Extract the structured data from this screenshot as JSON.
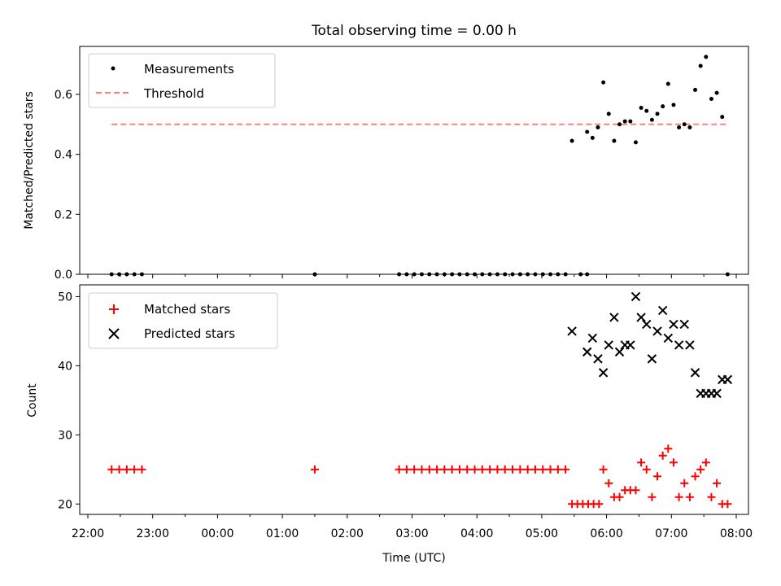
{
  "chart_data": [
    {
      "type": "scatter",
      "title": "Total observing time = 0.00 h",
      "xlabel": "",
      "ylabel": "Matched/Predicted stars",
      "ylim": [
        0,
        0.76
      ],
      "y_ticks": [
        "0.0",
        "0.2",
        "0.4",
        "0.6"
      ],
      "legend_position": "top-left",
      "series": [
        {
          "name": "Measurements",
          "color": "#000000",
          "marker": "dot",
          "points": [
            [
              "22:22",
              0
            ],
            [
              "22:29",
              0
            ],
            [
              "22:36",
              0
            ],
            [
              "22:43",
              0
            ],
            [
              "22:50",
              0
            ],
            [
              "01:30",
              0
            ],
            [
              "02:48",
              0
            ],
            [
              "02:55",
              0
            ],
            [
              "03:02",
              0
            ],
            [
              "03:09",
              0
            ],
            [
              "03:16",
              0
            ],
            [
              "03:23",
              0
            ],
            [
              "03:30",
              0
            ],
            [
              "03:37",
              0
            ],
            [
              "03:44",
              0
            ],
            [
              "03:51",
              0
            ],
            [
              "03:58",
              0
            ],
            [
              "04:05",
              0
            ],
            [
              "04:12",
              0
            ],
            [
              "04:19",
              0
            ],
            [
              "04:26",
              0
            ],
            [
              "04:33",
              0
            ],
            [
              "04:40",
              0
            ],
            [
              "04:47",
              0
            ],
            [
              "04:54",
              0
            ],
            [
              "05:01",
              0
            ],
            [
              "05:08",
              0
            ],
            [
              "05:15",
              0
            ],
            [
              "05:22",
              0
            ],
            [
              "05:28",
              0.445
            ],
            [
              "05:36",
              0
            ],
            [
              "05:42",
              0
            ],
            [
              "05:42",
              0.475
            ],
            [
              "05:47",
              0.455
            ],
            [
              "05:52",
              0.49
            ],
            [
              "05:57",
              0.64
            ],
            [
              "06:02",
              0.535
            ],
            [
              "06:07",
              0.445
            ],
            [
              "06:12",
              0.5
            ],
            [
              "06:17",
              0.51
            ],
            [
              "06:22",
              0.51
            ],
            [
              "06:27",
              0.44
            ],
            [
              "06:32",
              0.555
            ],
            [
              "06:37",
              0.545
            ],
            [
              "06:42",
              0.515
            ],
            [
              "06:47",
              0.535
            ],
            [
              "06:52",
              0.56
            ],
            [
              "06:57",
              0.635
            ],
            [
              "07:02",
              0.565
            ],
            [
              "07:07",
              0.49
            ],
            [
              "07:12",
              0.5
            ],
            [
              "07:17",
              0.49
            ],
            [
              "07:22",
              0.615
            ],
            [
              "07:27",
              0.695
            ],
            [
              "07:32",
              0.725
            ],
            [
              "07:37",
              0.585
            ],
            [
              "07:42",
              0.605
            ],
            [
              "07:47",
              0.525
            ],
            [
              "07:52",
              0
            ]
          ]
        },
        {
          "name": "Threshold",
          "color": "#ff7f7f",
          "style": "dashed",
          "points": [
            [
              "22:22",
              0.5
            ],
            [
              "07:52",
              0.5
            ]
          ]
        }
      ]
    },
    {
      "type": "scatter",
      "title": "",
      "xlabel": "Time (UTC)",
      "ylabel": "Count",
      "ylim": [
        18.5,
        51.7
      ],
      "y_ticks": [
        "20",
        "30",
        "40",
        "50"
      ],
      "x_ticks": [
        "22:00",
        "23:00",
        "00:00",
        "01:00",
        "02:00",
        "03:00",
        "04:00",
        "05:00",
        "06:00",
        "07:00",
        "08:00"
      ],
      "legend_position": "top-left",
      "series": [
        {
          "name": "Matched stars",
          "color": "#ff0000",
          "marker": "plus",
          "points": [
            [
              "22:22",
              25
            ],
            [
              "22:29",
              25
            ],
            [
              "22:36",
              25
            ],
            [
              "22:43",
              25
            ],
            [
              "22:50",
              25
            ],
            [
              "01:30",
              25
            ],
            [
              "02:48",
              25
            ],
            [
              "02:55",
              25
            ],
            [
              "03:02",
              25
            ],
            [
              "03:09",
              25
            ],
            [
              "03:16",
              25
            ],
            [
              "03:23",
              25
            ],
            [
              "03:30",
              25
            ],
            [
              "03:37",
              25
            ],
            [
              "03:44",
              25
            ],
            [
              "03:51",
              25
            ],
            [
              "03:58",
              25
            ],
            [
              "04:05",
              25
            ],
            [
              "04:12",
              25
            ],
            [
              "04:19",
              25
            ],
            [
              "04:26",
              25
            ],
            [
              "04:33",
              25
            ],
            [
              "04:40",
              25
            ],
            [
              "04:47",
              25
            ],
            [
              "04:54",
              25
            ],
            [
              "05:01",
              25
            ],
            [
              "05:08",
              25
            ],
            [
              "05:15",
              25
            ],
            [
              "05:22",
              25
            ],
            [
              "05:28",
              20
            ],
            [
              "05:33",
              20
            ],
            [
              "05:38",
              20
            ],
            [
              "05:43",
              20
            ],
            [
              "05:48",
              20
            ],
            [
              "05:53",
              20
            ],
            [
              "05:57",
              25
            ],
            [
              "06:02",
              23
            ],
            [
              "06:07",
              21
            ],
            [
              "06:12",
              21
            ],
            [
              "06:17",
              22
            ],
            [
              "06:22",
              22
            ],
            [
              "06:27",
              22
            ],
            [
              "06:32",
              26
            ],
            [
              "06:37",
              25
            ],
            [
              "06:42",
              21
            ],
            [
              "06:47",
              24
            ],
            [
              "06:52",
              27
            ],
            [
              "06:57",
              28
            ],
            [
              "07:02",
              26
            ],
            [
              "07:07",
              21
            ],
            [
              "07:12",
              23
            ],
            [
              "07:17",
              21
            ],
            [
              "07:22",
              24
            ],
            [
              "07:27",
              25
            ],
            [
              "07:32",
              26
            ],
            [
              "07:37",
              21
            ],
            [
              "07:42",
              23
            ],
            [
              "07:47",
              20
            ],
            [
              "07:52",
              20
            ]
          ]
        },
        {
          "name": "Predicted stars",
          "color": "#000000",
          "marker": "x",
          "points": [
            [
              "05:28",
              45
            ],
            [
              "05:42",
              42
            ],
            [
              "05:47",
              44
            ],
            [
              "05:52",
              41
            ],
            [
              "05:57",
              39
            ],
            [
              "06:02",
              43
            ],
            [
              "06:07",
              47
            ],
            [
              "06:12",
              42
            ],
            [
              "06:17",
              43
            ],
            [
              "06:22",
              43
            ],
            [
              "06:27",
              50
            ],
            [
              "06:32",
              47
            ],
            [
              "06:37",
              46
            ],
            [
              "06:42",
              41
            ],
            [
              "06:47",
              45
            ],
            [
              "06:52",
              48
            ],
            [
              "06:57",
              44
            ],
            [
              "07:02",
              46
            ],
            [
              "07:07",
              43
            ],
            [
              "07:12",
              46
            ],
            [
              "07:17",
              43
            ],
            [
              "07:22",
              39
            ],
            [
              "07:27",
              36
            ],
            [
              "07:32",
              36
            ],
            [
              "07:37",
              36
            ],
            [
              "07:42",
              36
            ],
            [
              "07:47",
              38
            ],
            [
              "07:52",
              38
            ]
          ]
        }
      ]
    }
  ]
}
